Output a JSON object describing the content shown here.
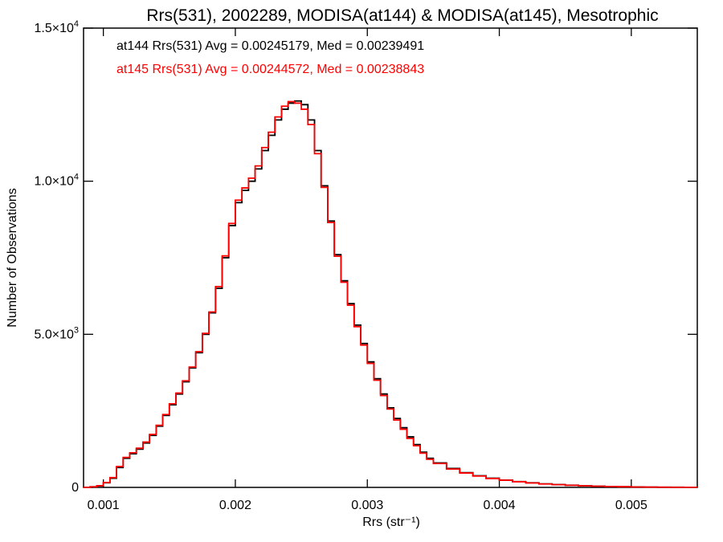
{
  "chart_data": {
    "type": "line",
    "title": "Rrs(531), 2002289, MODISA(at144) & MODISA(at145), Mesotrophic",
    "xlabel": "Rrs (str⁻¹)",
    "ylabel": "Number of Observations",
    "xlim": [
      0.00085,
      0.0055
    ],
    "ylim": [
      0,
      15000
    ],
    "x_ticks": [
      {
        "value": 0.001,
        "label": "0.001"
      },
      {
        "value": 0.002,
        "label": "0.002"
      },
      {
        "value": 0.003,
        "label": "0.003"
      },
      {
        "value": 0.004,
        "label": "0.004"
      },
      {
        "value": 0.005,
        "label": "0.005"
      }
    ],
    "y_ticks": [
      {
        "value": 0,
        "label": "0",
        "mant": "",
        "exp": ""
      },
      {
        "value": 5000,
        "label": "",
        "mant": "5.0×10",
        "exp": "3"
      },
      {
        "value": 10000,
        "label": "",
        "mant": "1.0×10",
        "exp": "4"
      },
      {
        "value": 15000,
        "label": "",
        "mant": "1.5×10",
        "exp": "4"
      }
    ],
    "annotations": [
      {
        "text": "at144 Rrs(531) Avg = 0.00245179, Med = 0.00239491",
        "color": "#000000"
      },
      {
        "text": "at145 Rrs(531) Avg = 0.00244572, Med = 0.00238843",
        "color": "#ff0000"
      }
    ],
    "grid": false,
    "step": true,
    "series": [
      {
        "color": "#000000",
        "x": [
          0.00085,
          0.0009,
          0.00095,
          0.001,
          0.00105,
          0.0011,
          0.00115,
          0.0012,
          0.00125,
          0.0013,
          0.00135,
          0.0014,
          0.00145,
          0.0015,
          0.00155,
          0.0016,
          0.00165,
          0.0017,
          0.00175,
          0.0018,
          0.00185,
          0.0019,
          0.00195,
          0.002,
          0.00205,
          0.0021,
          0.00215,
          0.0022,
          0.00225,
          0.0023,
          0.00235,
          0.0024,
          0.00245,
          0.0025,
          0.00255,
          0.0026,
          0.00265,
          0.0027,
          0.00275,
          0.0028,
          0.00285,
          0.0029,
          0.00295,
          0.003,
          0.00305,
          0.0031,
          0.00315,
          0.0032,
          0.00325,
          0.0033,
          0.00335,
          0.0034,
          0.00345,
          0.0035,
          0.0036,
          0.0037,
          0.0038,
          0.0039,
          0.004,
          0.0041,
          0.0042,
          0.0043,
          0.0044,
          0.0045,
          0.0046,
          0.0047,
          0.0048,
          0.0049,
          0.005,
          0.0051,
          0.0052,
          0.0053,
          0.0054,
          0.0055
        ],
        "y": [
          0,
          20,
          50,
          150,
          300,
          650,
          950,
          1100,
          1250,
          1450,
          1700,
          2000,
          2350,
          2700,
          3050,
          3450,
          3900,
          4400,
          5000,
          5700,
          6500,
          7500,
          8550,
          9300,
          9700,
          10000,
          10400,
          11000,
          11500,
          12000,
          12350,
          12550,
          12620,
          12500,
          12000,
          11000,
          9850,
          8700,
          7600,
          6750,
          6000,
          5300,
          4700,
          4100,
          3550,
          3050,
          2600,
          2250,
          1950,
          1650,
          1400,
          1150,
          950,
          800,
          620,
          480,
          380,
          300,
          240,
          190,
          150,
          115,
          90,
          70,
          55,
          40,
          30,
          22,
          15,
          10,
          7,
          5,
          3,
          2
        ]
      },
      {
        "color": "#ff0000",
        "x": [
          0.00085,
          0.0009,
          0.00095,
          0.001,
          0.00105,
          0.0011,
          0.00115,
          0.0012,
          0.00125,
          0.0013,
          0.00135,
          0.0014,
          0.00145,
          0.0015,
          0.00155,
          0.0016,
          0.00165,
          0.0017,
          0.00175,
          0.0018,
          0.00185,
          0.0019,
          0.00195,
          0.002,
          0.00205,
          0.0021,
          0.00215,
          0.0022,
          0.00225,
          0.0023,
          0.00235,
          0.0024,
          0.00245,
          0.0025,
          0.00255,
          0.0026,
          0.00265,
          0.0027,
          0.00275,
          0.0028,
          0.00285,
          0.0029,
          0.00295,
          0.003,
          0.00305,
          0.0031,
          0.00315,
          0.0032,
          0.00325,
          0.0033,
          0.00335,
          0.0034,
          0.00345,
          0.0035,
          0.0036,
          0.0037,
          0.0038,
          0.0039,
          0.004,
          0.0041,
          0.0042,
          0.0043,
          0.0044,
          0.0045,
          0.0046,
          0.0047,
          0.0048,
          0.0049,
          0.005,
          0.0051,
          0.0052,
          0.0053,
          0.0054,
          0.0055
        ],
        "y": [
          0,
          20,
          55,
          160,
          320,
          680,
          980,
          1130,
          1280,
          1480,
          1730,
          2030,
          2380,
          2730,
          3080,
          3480,
          3930,
          4430,
          5030,
          5730,
          6560,
          7560,
          8620,
          9380,
          9780,
          10100,
          10500,
          11100,
          11600,
          12100,
          12450,
          12600,
          12550,
          12350,
          11850,
          10900,
          9800,
          8650,
          7550,
          6700,
          5950,
          5250,
          4650,
          4050,
          3500,
          3000,
          2560,
          2200,
          1900,
          1600,
          1360,
          1120,
          920,
          780,
          600,
          470,
          370,
          290,
          235,
          185,
          145,
          112,
          88,
          68,
          53,
          39,
          29,
          21,
          14,
          9,
          6,
          4,
          3,
          2
        ]
      }
    ]
  }
}
